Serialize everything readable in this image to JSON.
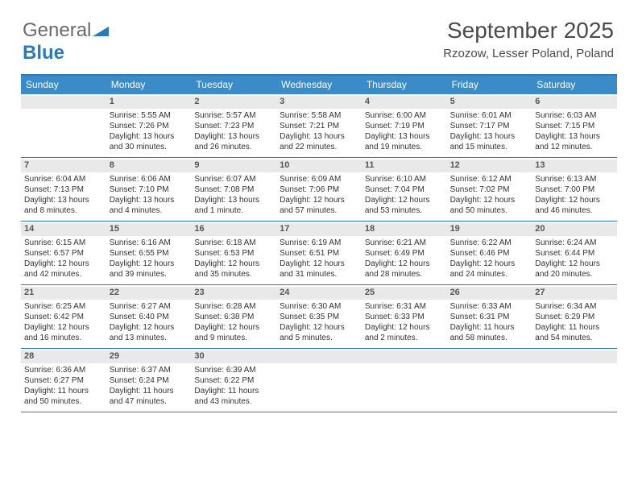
{
  "brand": {
    "part1": "General",
    "part2": "Blue"
  },
  "title": "September 2025",
  "location": "Rzozow, Lesser Poland, Poland",
  "weekdays": [
    "Sunday",
    "Monday",
    "Tuesday",
    "Wednesday",
    "Thursday",
    "Friday",
    "Saturday"
  ],
  "colors": {
    "header_bg": "#3b8bc9",
    "border": "#2b7bbb",
    "daynum_bg": "#e9e9e9",
    "text": "#333333"
  },
  "weeks": [
    [
      {
        "day": "",
        "sunrise": "",
        "sunset": "",
        "daylight1": "",
        "daylight2": ""
      },
      {
        "day": "1",
        "sunrise": "Sunrise: 5:55 AM",
        "sunset": "Sunset: 7:26 PM",
        "daylight1": "Daylight: 13 hours",
        "daylight2": "and 30 minutes."
      },
      {
        "day": "2",
        "sunrise": "Sunrise: 5:57 AM",
        "sunset": "Sunset: 7:23 PM",
        "daylight1": "Daylight: 13 hours",
        "daylight2": "and 26 minutes."
      },
      {
        "day": "3",
        "sunrise": "Sunrise: 5:58 AM",
        "sunset": "Sunset: 7:21 PM",
        "daylight1": "Daylight: 13 hours",
        "daylight2": "and 22 minutes."
      },
      {
        "day": "4",
        "sunrise": "Sunrise: 6:00 AM",
        "sunset": "Sunset: 7:19 PM",
        "daylight1": "Daylight: 13 hours",
        "daylight2": "and 19 minutes."
      },
      {
        "day": "5",
        "sunrise": "Sunrise: 6:01 AM",
        "sunset": "Sunset: 7:17 PM",
        "daylight1": "Daylight: 13 hours",
        "daylight2": "and 15 minutes."
      },
      {
        "day": "6",
        "sunrise": "Sunrise: 6:03 AM",
        "sunset": "Sunset: 7:15 PM",
        "daylight1": "Daylight: 13 hours",
        "daylight2": "and 12 minutes."
      }
    ],
    [
      {
        "day": "7",
        "sunrise": "Sunrise: 6:04 AM",
        "sunset": "Sunset: 7:13 PM",
        "daylight1": "Daylight: 13 hours",
        "daylight2": "and 8 minutes."
      },
      {
        "day": "8",
        "sunrise": "Sunrise: 6:06 AM",
        "sunset": "Sunset: 7:10 PM",
        "daylight1": "Daylight: 13 hours",
        "daylight2": "and 4 minutes."
      },
      {
        "day": "9",
        "sunrise": "Sunrise: 6:07 AM",
        "sunset": "Sunset: 7:08 PM",
        "daylight1": "Daylight: 13 hours",
        "daylight2": "and 1 minute."
      },
      {
        "day": "10",
        "sunrise": "Sunrise: 6:09 AM",
        "sunset": "Sunset: 7:06 PM",
        "daylight1": "Daylight: 12 hours",
        "daylight2": "and 57 minutes."
      },
      {
        "day": "11",
        "sunrise": "Sunrise: 6:10 AM",
        "sunset": "Sunset: 7:04 PM",
        "daylight1": "Daylight: 12 hours",
        "daylight2": "and 53 minutes."
      },
      {
        "day": "12",
        "sunrise": "Sunrise: 6:12 AM",
        "sunset": "Sunset: 7:02 PM",
        "daylight1": "Daylight: 12 hours",
        "daylight2": "and 50 minutes."
      },
      {
        "day": "13",
        "sunrise": "Sunrise: 6:13 AM",
        "sunset": "Sunset: 7:00 PM",
        "daylight1": "Daylight: 12 hours",
        "daylight2": "and 46 minutes."
      }
    ],
    [
      {
        "day": "14",
        "sunrise": "Sunrise: 6:15 AM",
        "sunset": "Sunset: 6:57 PM",
        "daylight1": "Daylight: 12 hours",
        "daylight2": "and 42 minutes."
      },
      {
        "day": "15",
        "sunrise": "Sunrise: 6:16 AM",
        "sunset": "Sunset: 6:55 PM",
        "daylight1": "Daylight: 12 hours",
        "daylight2": "and 39 minutes."
      },
      {
        "day": "16",
        "sunrise": "Sunrise: 6:18 AM",
        "sunset": "Sunset: 6:53 PM",
        "daylight1": "Daylight: 12 hours",
        "daylight2": "and 35 minutes."
      },
      {
        "day": "17",
        "sunrise": "Sunrise: 6:19 AM",
        "sunset": "Sunset: 6:51 PM",
        "daylight1": "Daylight: 12 hours",
        "daylight2": "and 31 minutes."
      },
      {
        "day": "18",
        "sunrise": "Sunrise: 6:21 AM",
        "sunset": "Sunset: 6:49 PM",
        "daylight1": "Daylight: 12 hours",
        "daylight2": "and 28 minutes."
      },
      {
        "day": "19",
        "sunrise": "Sunrise: 6:22 AM",
        "sunset": "Sunset: 6:46 PM",
        "daylight1": "Daylight: 12 hours",
        "daylight2": "and 24 minutes."
      },
      {
        "day": "20",
        "sunrise": "Sunrise: 6:24 AM",
        "sunset": "Sunset: 6:44 PM",
        "daylight1": "Daylight: 12 hours",
        "daylight2": "and 20 minutes."
      }
    ],
    [
      {
        "day": "21",
        "sunrise": "Sunrise: 6:25 AM",
        "sunset": "Sunset: 6:42 PM",
        "daylight1": "Daylight: 12 hours",
        "daylight2": "and 16 minutes."
      },
      {
        "day": "22",
        "sunrise": "Sunrise: 6:27 AM",
        "sunset": "Sunset: 6:40 PM",
        "daylight1": "Daylight: 12 hours",
        "daylight2": "and 13 minutes."
      },
      {
        "day": "23",
        "sunrise": "Sunrise: 6:28 AM",
        "sunset": "Sunset: 6:38 PM",
        "daylight1": "Daylight: 12 hours",
        "daylight2": "and 9 minutes."
      },
      {
        "day": "24",
        "sunrise": "Sunrise: 6:30 AM",
        "sunset": "Sunset: 6:35 PM",
        "daylight1": "Daylight: 12 hours",
        "daylight2": "and 5 minutes."
      },
      {
        "day": "25",
        "sunrise": "Sunrise: 6:31 AM",
        "sunset": "Sunset: 6:33 PM",
        "daylight1": "Daylight: 12 hours",
        "daylight2": "and 2 minutes."
      },
      {
        "day": "26",
        "sunrise": "Sunrise: 6:33 AM",
        "sunset": "Sunset: 6:31 PM",
        "daylight1": "Daylight: 11 hours",
        "daylight2": "and 58 minutes."
      },
      {
        "day": "27",
        "sunrise": "Sunrise: 6:34 AM",
        "sunset": "Sunset: 6:29 PM",
        "daylight1": "Daylight: 11 hours",
        "daylight2": "and 54 minutes."
      }
    ],
    [
      {
        "day": "28",
        "sunrise": "Sunrise: 6:36 AM",
        "sunset": "Sunset: 6:27 PM",
        "daylight1": "Daylight: 11 hours",
        "daylight2": "and 50 minutes."
      },
      {
        "day": "29",
        "sunrise": "Sunrise: 6:37 AM",
        "sunset": "Sunset: 6:24 PM",
        "daylight1": "Daylight: 11 hours",
        "daylight2": "and 47 minutes."
      },
      {
        "day": "30",
        "sunrise": "Sunrise: 6:39 AM",
        "sunset": "Sunset: 6:22 PM",
        "daylight1": "Daylight: 11 hours",
        "daylight2": "and 43 minutes."
      },
      {
        "day": "",
        "sunrise": "",
        "sunset": "",
        "daylight1": "",
        "daylight2": ""
      },
      {
        "day": "",
        "sunrise": "",
        "sunset": "",
        "daylight1": "",
        "daylight2": ""
      },
      {
        "day": "",
        "sunrise": "",
        "sunset": "",
        "daylight1": "",
        "daylight2": ""
      },
      {
        "day": "",
        "sunrise": "",
        "sunset": "",
        "daylight1": "",
        "daylight2": ""
      }
    ]
  ]
}
